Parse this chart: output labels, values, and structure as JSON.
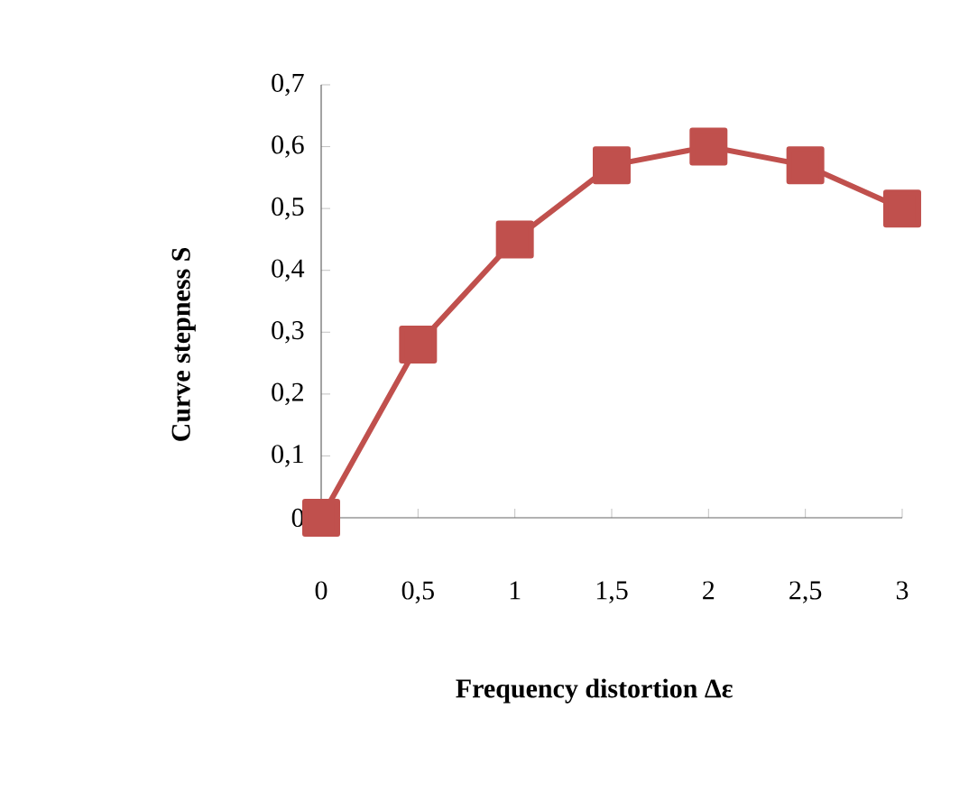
{
  "chart_data": {
    "type": "line",
    "xlabel": "Frequency distortion Δε",
    "ylabel": "Curve stepness S",
    "categories": [
      "0",
      "0,5",
      "1",
      "1,5",
      "2",
      "2,5",
      "3"
    ],
    "series": [
      {
        "color": "#c0504d",
        "values": [
          0,
          0.28,
          0.45,
          0.57,
          0.6,
          0.57,
          0.5
        ]
      }
    ],
    "ylim": [
      0,
      0.7
    ],
    "yticks": [
      0,
      {
        "value": 0.1,
        "label": "0,1"
      },
      {
        "value": 0.2,
        "label": "0,2"
      },
      {
        "value": 0.3,
        "label": "0,3"
      },
      {
        "value": 0.4,
        "label": "0,4"
      },
      {
        "value": 0.5,
        "label": "0,5"
      },
      {
        "value": 0.6,
        "label": "0,6"
      },
      {
        "value": 0.7,
        "label": "0,7"
      }
    ],
    "grid": false,
    "marker": "square",
    "line_style": "solid"
  }
}
